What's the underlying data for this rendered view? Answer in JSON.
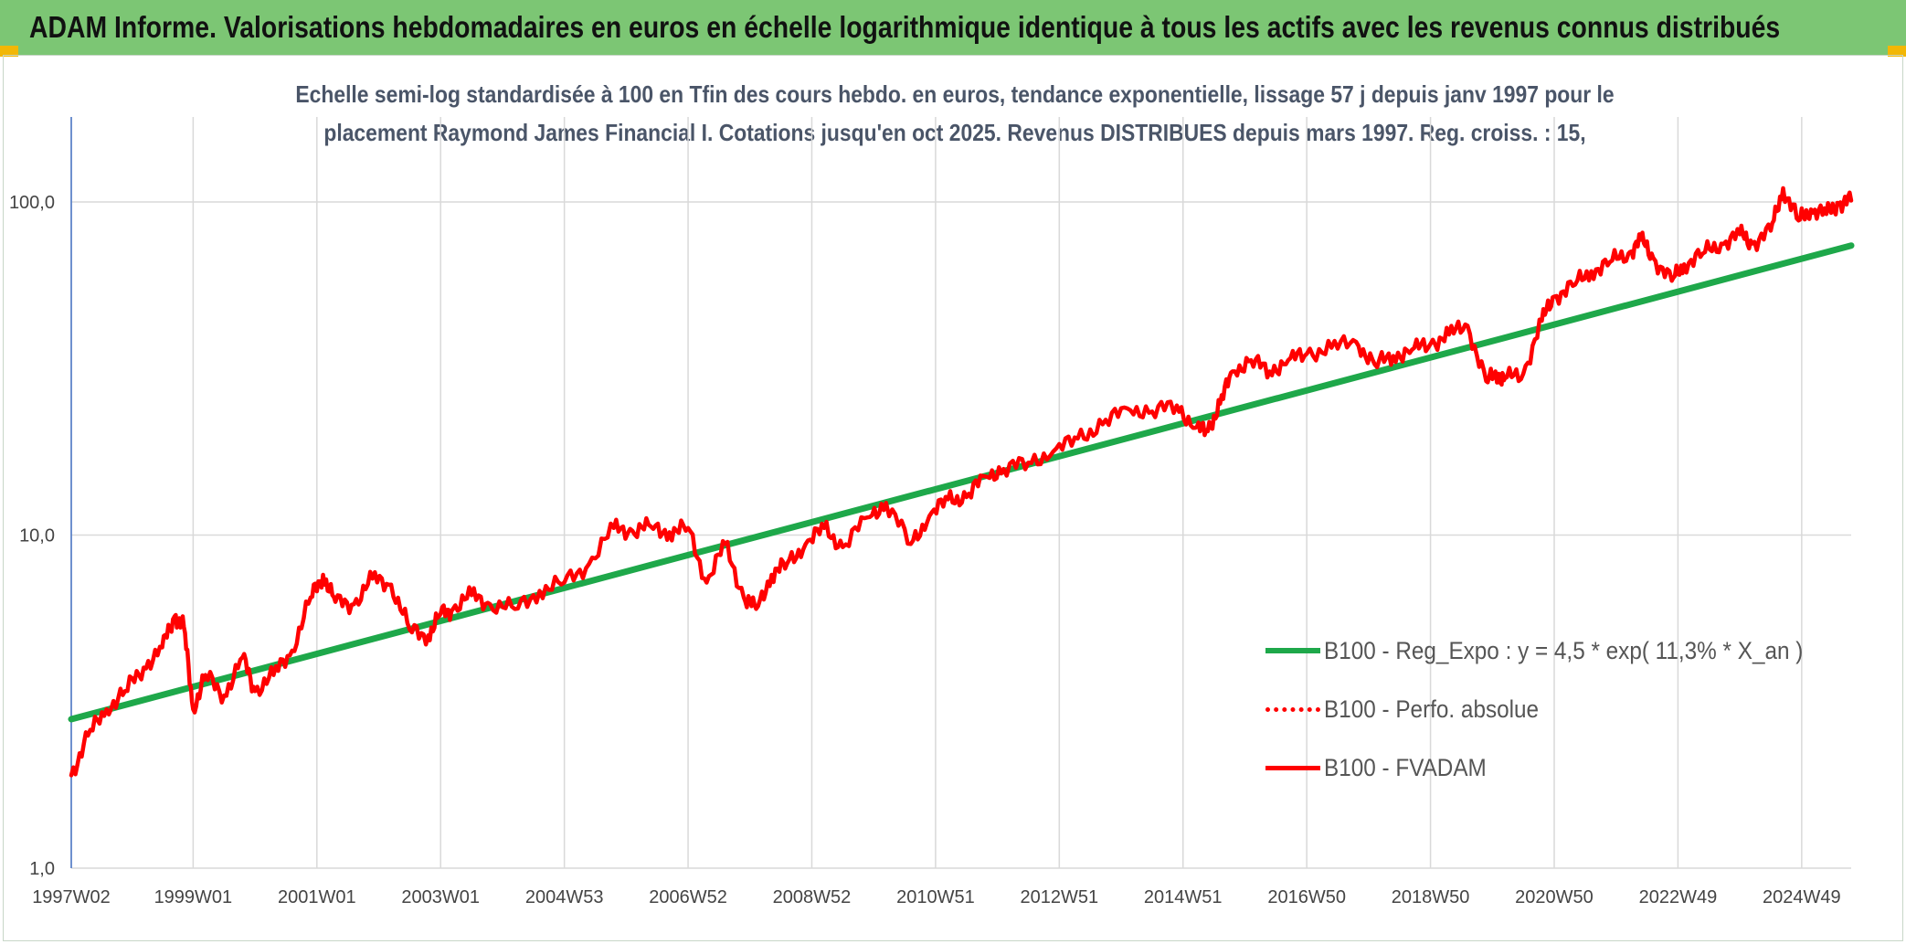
{
  "header": {
    "title": "ADAM Informe. Valorisations hebdomadaires en euros en échelle logarithmique identique à tous les actifs avec les revenus connus distribués"
  },
  "colors": {
    "header_bg": "#7cc674",
    "corner": "#f2b705",
    "regression": "#1ea84a",
    "fvadam": "#ff0000",
    "perfo": "#ff0000",
    "grid": "#d9d9d9"
  },
  "chart_data": {
    "type": "line",
    "title_line1": "Echelle semi-log standardisée à 100 en Tfin des cours hebdo. en euros, tendance exponentielle, lissage 57 j depuis janv 1997 pour le",
    "title_line2": "placement Raymond James Financial I. Cotations jusqu'en oct 2025. Revenus DISTRIBUES depuis mars 1997. Reg. croiss. : 15,",
    "y_scale": "log",
    "ylim": [
      1,
      180
    ],
    "y_ticks": [
      {
        "value": 1,
        "label": "1,0"
      },
      {
        "value": 10,
        "label": "10,0"
      },
      {
        "value": 100,
        "label": "100,0"
      }
    ],
    "xlim": [
      1997.03,
      2025.8
    ],
    "x_ticks": [
      {
        "x": 1997.03,
        "label": "1997W02"
      },
      {
        "x": 1999.0,
        "label": "1999W01"
      },
      {
        "x": 2001.0,
        "label": "2001W01"
      },
      {
        "x": 2003.0,
        "label": "2003W01"
      },
      {
        "x": 2005.0,
        "label": "2004W53"
      },
      {
        "x": 2007.0,
        "label": "2006W52"
      },
      {
        "x": 2009.0,
        "label": "2008W52"
      },
      {
        "x": 2011.0,
        "label": "2010W51"
      },
      {
        "x": 2013.0,
        "label": "2012W51"
      },
      {
        "x": 2015.0,
        "label": "2014W51"
      },
      {
        "x": 2017.0,
        "label": "2016W50"
      },
      {
        "x": 2019.0,
        "label": "2018W50"
      },
      {
        "x": 2021.0,
        "label": "2020W50"
      },
      {
        "x": 2023.0,
        "label": "2022W49"
      },
      {
        "x": 2025.0,
        "label": "2024W49"
      }
    ],
    "legend_position": "right",
    "series": [
      {
        "name": "B100 - Reg_Expo : y = 4,5 * exp( 11,3% *  X_an )",
        "style": "solid-thick",
        "color": "#1ea84a",
        "x": [
          1997.03,
          2025.8
        ],
        "y": [
          2.8,
          74
        ]
      },
      {
        "name": "B100 - Perfo. absolue",
        "style": "dotted",
        "color": "#ff0000",
        "x": [],
        "y": []
      },
      {
        "name": "B100 - FVADAM",
        "style": "solid",
        "color": "#ff0000",
        "x": [
          1997.03,
          1997.3,
          1997.6,
          1997.9,
          1998.2,
          1998.5,
          1998.7,
          1998.85,
          1999.0,
          1999.2,
          1999.5,
          1999.8,
          2000.0,
          2000.3,
          2000.6,
          2000.9,
          2001.1,
          2001.3,
          2001.6,
          2001.9,
          2002.2,
          2002.5,
          2002.8,
          2003.0,
          2003.2,
          2003.5,
          2003.8,
          2004.2,
          2004.6,
          2005.0,
          2005.4,
          2005.8,
          2006.1,
          2006.4,
          2006.7,
          2007.0,
          2007.3,
          2007.6,
          2007.9,
          2008.1,
          2008.35,
          2008.6,
          2008.9,
          2009.2,
          2009.5,
          2009.9,
          2010.2,
          2010.6,
          2010.9,
          2011.2,
          2011.5,
          2011.8,
          2012.1,
          2012.5,
          2012.9,
          2013.3,
          2013.7,
          2014.1,
          2014.5,
          2014.9,
          2015.2,
          2015.4,
          2015.6,
          2015.8,
          2016.1,
          2016.4,
          2016.7,
          2017.0,
          2017.4,
          2017.8,
          2018.1,
          2018.4,
          2018.7,
          2019.0,
          2019.3,
          2019.6,
          2019.9,
          2020.1,
          2020.2,
          2020.5,
          2020.8,
          2021.0,
          2021.3,
          2021.6,
          2021.9,
          2022.2,
          2022.4,
          2022.6,
          2022.9,
          2023.1,
          2023.4,
          2023.7,
          2024.0,
          2024.2,
          2024.5,
          2024.7,
          2024.95,
          2025.15,
          2025.4,
          2025.6,
          2025.8
        ],
        "y": [
          1.9,
          2.5,
          3.0,
          3.4,
          4.0,
          4.6,
          5.7,
          5.3,
          3.0,
          3.8,
          3.3,
          4.3,
          3.4,
          3.8,
          4.5,
          6.5,
          7.6,
          6.3,
          6.2,
          7.4,
          7.1,
          5.2,
          5.0,
          5.8,
          6.0,
          6.6,
          6.2,
          6.0,
          6.8,
          7.2,
          8.2,
          10.5,
          10.3,
          10.6,
          10.2,
          10.5,
          7.2,
          9.4,
          6.5,
          6.0,
          7.6,
          8.2,
          9.4,
          10.5,
          9.2,
          11.3,
          12.5,
          9.4,
          11.4,
          12.8,
          13.0,
          15.0,
          15.8,
          16.5,
          17.8,
          19.5,
          21.5,
          24.0,
          23.5,
          24.5,
          21.0,
          20.5,
          24.8,
          31.0,
          33.5,
          31.0,
          33.5,
          35.0,
          36.5,
          38.0,
          32.5,
          34.5,
          36.0,
          37.5,
          40.0,
          42.5,
          29.0,
          30.5,
          29.5,
          30.5,
          44.0,
          52.0,
          56.0,
          62.0,
          66.0,
          70.0,
          77.0,
          68.0,
          58.0,
          65.0,
          70.0,
          75.0,
          80.0,
          75.0,
          82.0,
          110.0,
          88.0,
          95.0,
          92.0,
          99.0,
          101.0
        ]
      }
    ]
  }
}
